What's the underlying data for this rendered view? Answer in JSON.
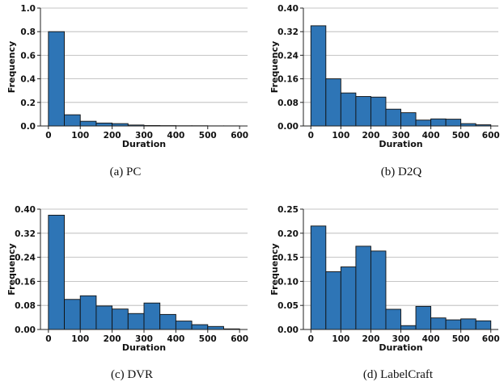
{
  "chart_data": [
    {
      "type": "bar",
      "subtype": "histogram",
      "caption": "(a)  PC",
      "xlabel": "Duration",
      "ylabel": "Frequency",
      "bin_edges": [
        0,
        50,
        100,
        150,
        200,
        250,
        300,
        350,
        400,
        450,
        500,
        550,
        600
      ],
      "values": [
        0.8,
        0.095,
        0.04,
        0.025,
        0.02,
        0.008,
        0.004,
        0.003,
        0.002,
        0.002,
        0.001,
        0.001
      ],
      "xlim": [
        -25,
        625
      ],
      "ylim": [
        0,
        1.0
      ],
      "xticks": [
        0,
        100,
        200,
        300,
        400,
        500,
        600
      ],
      "xtick_labels": [
        "0",
        "100",
        "200",
        "300",
        "400",
        "500",
        "600"
      ],
      "yticks": [
        0,
        0.2,
        0.4,
        0.6,
        0.8,
        1.0
      ],
      "ytick_labels": [
        "0.0",
        "0.2",
        "0.4",
        "0.6",
        "0.8",
        "1.0"
      ],
      "grid": "horizontal",
      "color": "#2e75b6"
    },
    {
      "type": "bar",
      "subtype": "histogram",
      "caption": "(b)  D2Q",
      "xlabel": "Duration",
      "ylabel": "Frequency",
      "bin_edges": [
        0,
        50,
        100,
        150,
        200,
        250,
        300,
        350,
        400,
        450,
        500,
        550,
        600
      ],
      "values": [
        0.34,
        0.16,
        0.112,
        0.1,
        0.098,
        0.057,
        0.045,
        0.02,
        0.024,
        0.023,
        0.008,
        0.004
      ],
      "xlim": [
        -25,
        625
      ],
      "ylim": [
        0,
        0.4
      ],
      "xticks": [
        0,
        100,
        200,
        300,
        400,
        500,
        600
      ],
      "xtick_labels": [
        "0",
        "100",
        "200",
        "300",
        "400",
        "500",
        "600"
      ],
      "yticks": [
        0,
        0.08,
        0.16,
        0.24,
        0.32,
        0.4
      ],
      "ytick_labels": [
        "0.00",
        "0.08",
        "0.16",
        "0.24",
        "0.32",
        "0.40"
      ],
      "grid": "horizontal",
      "color": "#2e75b6"
    },
    {
      "type": "bar",
      "subtype": "histogram",
      "caption": "(c)  DVR",
      "xlabel": "Duration",
      "ylabel": "Frequency",
      "bin_edges": [
        0,
        50,
        100,
        150,
        200,
        250,
        300,
        350,
        400,
        450,
        500,
        550,
        600
      ],
      "values": [
        0.38,
        0.1,
        0.112,
        0.078,
        0.068,
        0.053,
        0.088,
        0.05,
        0.028,
        0.016,
        0.01,
        0.002
      ],
      "xlim": [
        -25,
        625
      ],
      "ylim": [
        0,
        0.4
      ],
      "xticks": [
        0,
        100,
        200,
        300,
        400,
        500,
        600
      ],
      "xtick_labels": [
        "0",
        "100",
        "200",
        "300",
        "400",
        "500",
        "600"
      ],
      "yticks": [
        0,
        0.08,
        0.16,
        0.24,
        0.32,
        0.4
      ],
      "ytick_labels": [
        "0.00",
        "0.08",
        "0.16",
        "0.24",
        "0.32",
        "0.40"
      ],
      "grid": "horizontal",
      "color": "#2e75b6"
    },
    {
      "type": "bar",
      "subtype": "histogram",
      "caption": "(d)  LabelCraft",
      "xlabel": "Duration",
      "ylabel": "Frequency",
      "bin_edges": [
        0,
        50,
        100,
        150,
        200,
        250,
        300,
        350,
        400,
        450,
        500,
        550,
        600
      ],
      "values": [
        0.215,
        0.12,
        0.13,
        0.173,
        0.163,
        0.042,
        0.008,
        0.048,
        0.024,
        0.02,
        0.022,
        0.018
      ],
      "xlim": [
        -25,
        625
      ],
      "ylim": [
        0,
        0.25
      ],
      "xticks": [
        0,
        100,
        200,
        300,
        400,
        500,
        600
      ],
      "xtick_labels": [
        "0",
        "100",
        "200",
        "300",
        "400",
        "500",
        "600"
      ],
      "yticks": [
        0,
        0.05,
        0.1,
        0.15,
        0.2,
        0.25
      ],
      "ytick_labels": [
        "0.00",
        "0.05",
        "0.10",
        "0.15",
        "0.20",
        "0.25"
      ],
      "grid": "horizontal",
      "color": "#2e75b6"
    }
  ]
}
